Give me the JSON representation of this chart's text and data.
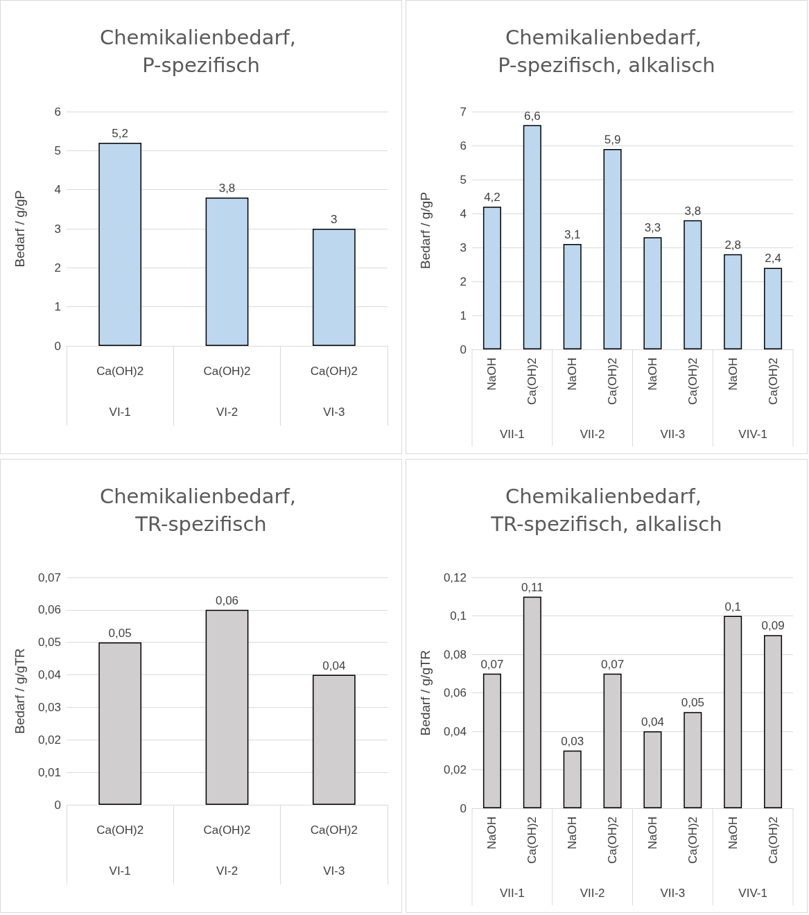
{
  "chart_data": [
    {
      "type": "bar",
      "title": "Chemikalienbedarf, P-spezifisch",
      "ylabel": "Bedarf / g/gP",
      "categories": [
        "Ca(OH)2",
        "Ca(OH)2",
        "Ca(OH)2"
      ],
      "values": [
        5.2,
        3.8,
        3
      ],
      "color": "#bdd7ee",
      "value_labels": [
        "5,2",
        "3,8",
        "3"
      ],
      "ylim": [
        0,
        6
      ],
      "yticks": [
        0,
        1,
        2,
        3,
        4,
        5,
        6
      ],
      "grid": "y",
      "annotations": [
        "VI-1",
        "VI-2",
        "VI-3"
      ]
    },
    {
      "type": "bar",
      "title": "Chemikalienbedarf, P-spezifisch, alkalisch",
      "ylabel": "Bedarf / g/gP",
      "categories": [
        "NaOH",
        "Ca(OH)2",
        "NaOH",
        "Ca(OH)2",
        "NaOH",
        "Ca(OH)2",
        "NaOH",
        "Ca(OH)2"
      ],
      "values": [
        4.2,
        6.6,
        3.1,
        5.9,
        3.3,
        3.8,
        2.8,
        2.4
      ],
      "color": "#bdd7ee",
      "value_labels": [
        "4,2",
        "6,6",
        "3,1",
        "5,9",
        "3,3",
        "3,8",
        "2,8",
        "2,4"
      ],
      "ylim": [
        0,
        7
      ],
      "yticks": [
        0,
        1,
        2,
        3,
        4,
        5,
        6,
        7
      ],
      "grid": "y",
      "annotations": [
        "VII-1",
        "VII-2",
        "VII-3",
        "VIV-1"
      ]
    },
    {
      "type": "bar",
      "title": "Chemikalienbedarf, TR-spezifisch",
      "ylabel": "Bedarf / g/gTR",
      "categories": [
        "Ca(OH)2",
        "Ca(OH)2",
        "Ca(OH)2"
      ],
      "values": [
        0.05,
        0.06,
        0.04
      ],
      "color": "#d0cece",
      "value_labels": [
        "0,05",
        "0,06",
        "0,04"
      ],
      "ylim": [
        0,
        0.07
      ],
      "yticks": [
        0,
        {
          "value": 0.01,
          "label": "0,01"
        },
        {
          "value": 0.02,
          "label": "0,02"
        },
        {
          "value": 0.03,
          "label": "0,03"
        },
        {
          "value": 0.04,
          "label": "0,04"
        },
        {
          "value": 0.05,
          "label": "0,05"
        },
        {
          "value": 0.06,
          "label": "0,06"
        },
        {
          "value": 0.07,
          "label": "0,07"
        }
      ],
      "grid": "y",
      "annotations": [
        "VI-1",
        "VI-2",
        "VI-3"
      ]
    },
    {
      "type": "bar",
      "title": "Chemikalienbedarf, TR-spezifisch, alkalisch",
      "ylabel": "Bedarf / g/gTR",
      "categories": [
        "NaOH",
        "Ca(OH)2",
        "NaOH",
        "Ca(OH)2",
        "NaOH",
        "Ca(OH)2",
        "NaOH",
        "Ca(OH)2"
      ],
      "values": [
        0.07,
        0.11,
        0.03,
        0.07,
        0.04,
        0.05,
        0.1,
        0.09
      ],
      "color": "#d0cece",
      "value_labels": [
        "0,07",
        "0,11",
        "0,03",
        "0,07",
        "0,04",
        "0,05",
        "0,1",
        "0,09"
      ],
      "ylim": [
        0,
        0.12
      ],
      "yticks": [
        0,
        {
          "value": 0.02,
          "label": "0,02"
        },
        {
          "value": 0.04,
          "label": "0,04"
        },
        {
          "value": 0.06,
          "label": "0,06"
        },
        {
          "value": 0.08,
          "label": "0,08"
        },
        {
          "value": 0.1,
          "label": "0,1"
        },
        {
          "value": 0.12,
          "label": "0,12"
        }
      ],
      "grid": "y",
      "annotations": [
        "VII-1",
        "VII-2",
        "VII-3",
        "VIV-1"
      ]
    }
  ]
}
